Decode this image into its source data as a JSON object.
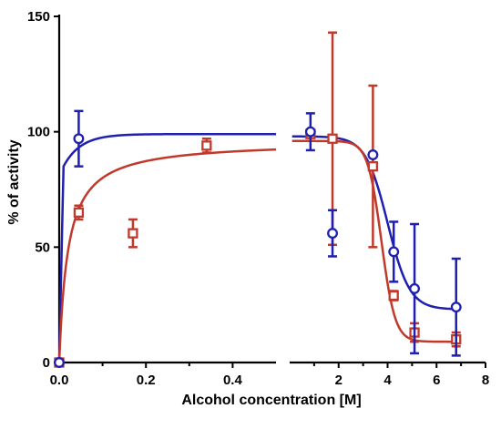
{
  "chart_data": {
    "type": "scatter",
    "title": "",
    "xlabel": "Alcohol concentration [M]",
    "ylabel": "% of activity",
    "ylim": [
      0,
      150
    ],
    "yticks": [
      "0",
      "50",
      "100",
      "150"
    ],
    "grid": false,
    "legend": "none",
    "x_axis_broken": true,
    "panels": [
      {
        "xlim": [
          0,
          0.5
        ],
        "xticks": [
          "0.0",
          "0.2",
          "0.4"
        ]
      },
      {
        "xlim": [
          0,
          8
        ],
        "xticks": [
          "2",
          "4",
          "6",
          "8"
        ]
      }
    ],
    "series": [
      {
        "marker": "circle",
        "color": "#1f1fb0",
        "panel_left": {
          "x": [
            0.0,
            0.045
          ],
          "y": [
            0,
            97
          ],
          "err": [
            0,
            12
          ]
        },
        "panel_right": {
          "x": [
            0.85,
            1.75,
            3.4,
            4.25,
            5.1,
            6.8
          ],
          "y": [
            100,
            56,
            90,
            48,
            32,
            24
          ],
          "err": [
            8,
            10,
            0,
            13,
            28,
            21
          ]
        }
      },
      {
        "marker": "square",
        "color": "#c0392b",
        "panel_left": {
          "x": [
            0.0,
            0.045,
            0.17,
            0.34
          ],
          "y": [
            0,
            65,
            56,
            94
          ],
          "err": [
            0,
            3,
            6,
            3
          ]
        },
        "panel_right": {
          "x": [
            0.85,
            1.75,
            3.4,
            4.25,
            5.1,
            6.8
          ],
          "y": [
            99,
            97,
            85,
            29,
            13,
            10
          ],
          "err": [
            0,
            46,
            35,
            2,
            4,
            3
          ]
        }
      }
    ]
  }
}
